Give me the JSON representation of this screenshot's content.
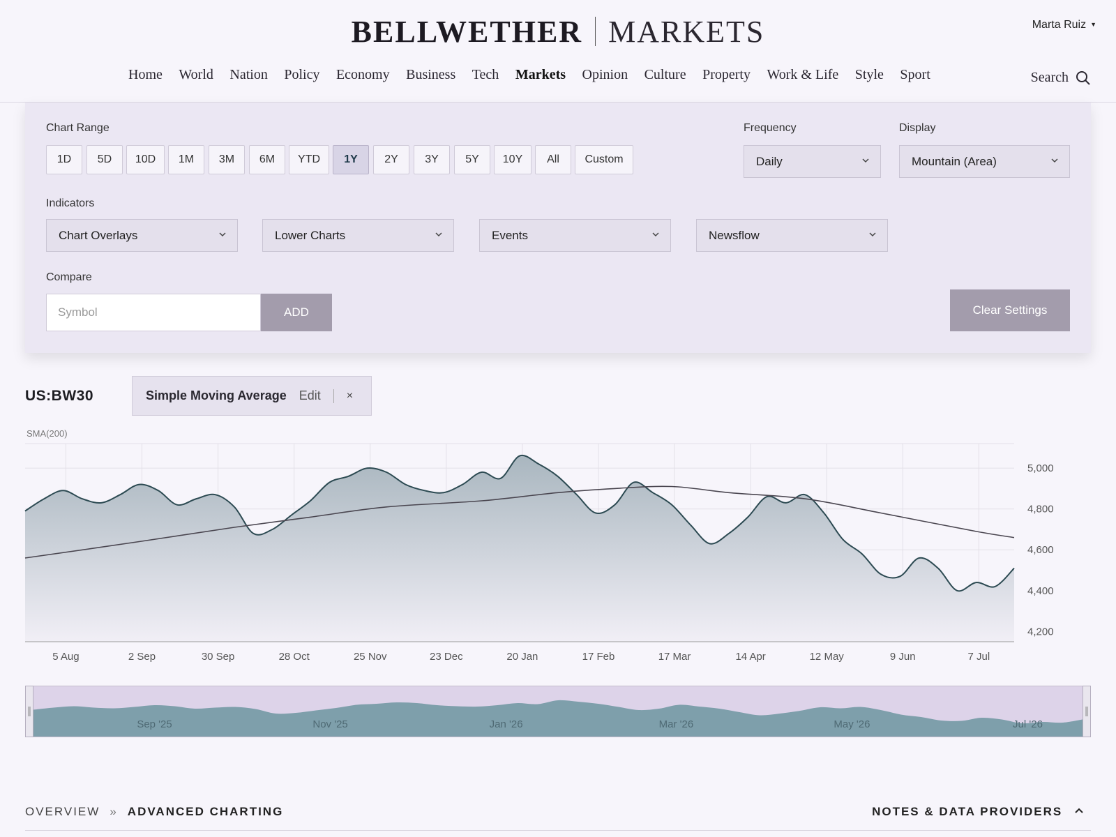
{
  "header": {
    "brand": "BELLWETHER",
    "section": "MARKETS",
    "user": "Marta Ruiz",
    "nav": [
      "Home",
      "World",
      "Nation",
      "Policy",
      "Economy",
      "Business",
      "Tech",
      "Markets",
      "Opinion",
      "Culture",
      "Property",
      "Work & Life",
      "Style",
      "Sport"
    ],
    "active_nav": "Markets",
    "search_label": "Search"
  },
  "panel": {
    "range_label": "Chart Range",
    "ranges": [
      "1D",
      "5D",
      "10D",
      "1M",
      "3M",
      "6M",
      "YTD",
      "1Y",
      "2Y",
      "3Y",
      "5Y",
      "10Y",
      "All",
      "Custom"
    ],
    "selected_range": "1Y",
    "frequency_label": "Frequency",
    "frequency_value": "Daily",
    "display_label": "Display",
    "display_value": "Mountain (Area)",
    "indicators_label": "Indicators",
    "indicators": [
      "Chart Overlays",
      "Lower Charts",
      "Events",
      "Newsflow"
    ],
    "compare_label": "Compare",
    "compare_placeholder": "Symbol",
    "add_label": "ADD",
    "clear_label": "Clear Settings"
  },
  "symbol": "US:BW30",
  "indicator_chip": {
    "name": "Simple Moving Average",
    "edit": "Edit",
    "close": "×"
  },
  "chart_data": {
    "type": "area",
    "overlay_label": "SMA(200)",
    "x_ticks": [
      "5 Aug",
      "2 Sep",
      "30 Sep",
      "28 Oct",
      "25 Nov",
      "23 Dec",
      "20 Jan",
      "17 Feb",
      "17 Mar",
      "14 Apr",
      "12 May",
      "9 Jun",
      "7 Jul"
    ],
    "y_ticks": [
      "5,000",
      "4,800",
      "4,600",
      "4,400",
      "4,200"
    ],
    "ylim": [
      4150,
      5120
    ],
    "series": [
      {
        "name": "US:BW30",
        "x": [
          "2025-07-21",
          "2025-07-28",
          "2025-08-04",
          "2025-08-11",
          "2025-08-18",
          "2025-08-25",
          "2025-09-01",
          "2025-09-08",
          "2025-09-15",
          "2025-09-22",
          "2025-09-29",
          "2025-10-06",
          "2025-10-13",
          "2025-10-20",
          "2025-10-27",
          "2025-11-03",
          "2025-11-10",
          "2025-11-17",
          "2025-11-24",
          "2025-12-01",
          "2025-12-08",
          "2025-12-15",
          "2025-12-22",
          "2025-12-29",
          "2026-01-05",
          "2026-01-12",
          "2026-01-19",
          "2026-01-26",
          "2026-02-02",
          "2026-02-09",
          "2026-02-16",
          "2026-02-23",
          "2026-03-02",
          "2026-03-09",
          "2026-03-16",
          "2026-03-23",
          "2026-03-30",
          "2026-04-06",
          "2026-04-13",
          "2026-04-20",
          "2026-04-27",
          "2026-05-04",
          "2026-05-11",
          "2026-05-18",
          "2026-05-25",
          "2026-06-01",
          "2026-06-08",
          "2026-06-15",
          "2026-06-22",
          "2026-06-29",
          "2026-07-06",
          "2026-07-13",
          "2026-07-20"
        ],
        "values": [
          4790,
          4850,
          4890,
          4850,
          4830,
          4870,
          4920,
          4890,
          4820,
          4850,
          4870,
          4810,
          4680,
          4700,
          4770,
          4840,
          4930,
          4960,
          5000,
          4980,
          4920,
          4890,
          4880,
          4920,
          4980,
          4950,
          5060,
          5020,
          4960,
          4870,
          4780,
          4820,
          4930,
          4880,
          4820,
          4720,
          4630,
          4680,
          4760,
          4860,
          4830,
          4870,
          4780,
          4650,
          4580,
          4480,
          4470,
          4560,
          4510,
          4400,
          4440,
          4420,
          4510
        ]
      },
      {
        "name": "SMA(200)",
        "x": [
          "2025-07-21",
          "2025-09-01",
          "2025-10-06",
          "2025-11-03",
          "2025-12-01",
          "2026-01-05",
          "2026-02-02",
          "2026-02-23",
          "2026-03-16",
          "2026-04-06",
          "2026-05-04",
          "2026-06-01",
          "2026-07-06",
          "2026-07-20"
        ],
        "values": [
          4560,
          4640,
          4710,
          4760,
          4810,
          4840,
          4880,
          4900,
          4910,
          4880,
          4850,
          4780,
          4690,
          4660
        ]
      }
    ]
  },
  "navigator": {
    "labels": [
      "Sep '25",
      "Nov '25",
      "Jan '26",
      "Mar '26",
      "May '26",
      "Jul '26"
    ]
  },
  "footer": {
    "crumb_1": "OVERVIEW",
    "crumb_sep": "»",
    "crumb_2": "ADVANCED CHARTING",
    "notes": "NOTES & DATA PROVIDERS"
  },
  "colors": {
    "line": "#2c4a52",
    "area_top": "#a9b6bf",
    "area_bottom": "#f1eff6",
    "sma": "#4a4650",
    "nav_fill": "#7e9fab",
    "nav_bg": "#ddd3e9"
  }
}
